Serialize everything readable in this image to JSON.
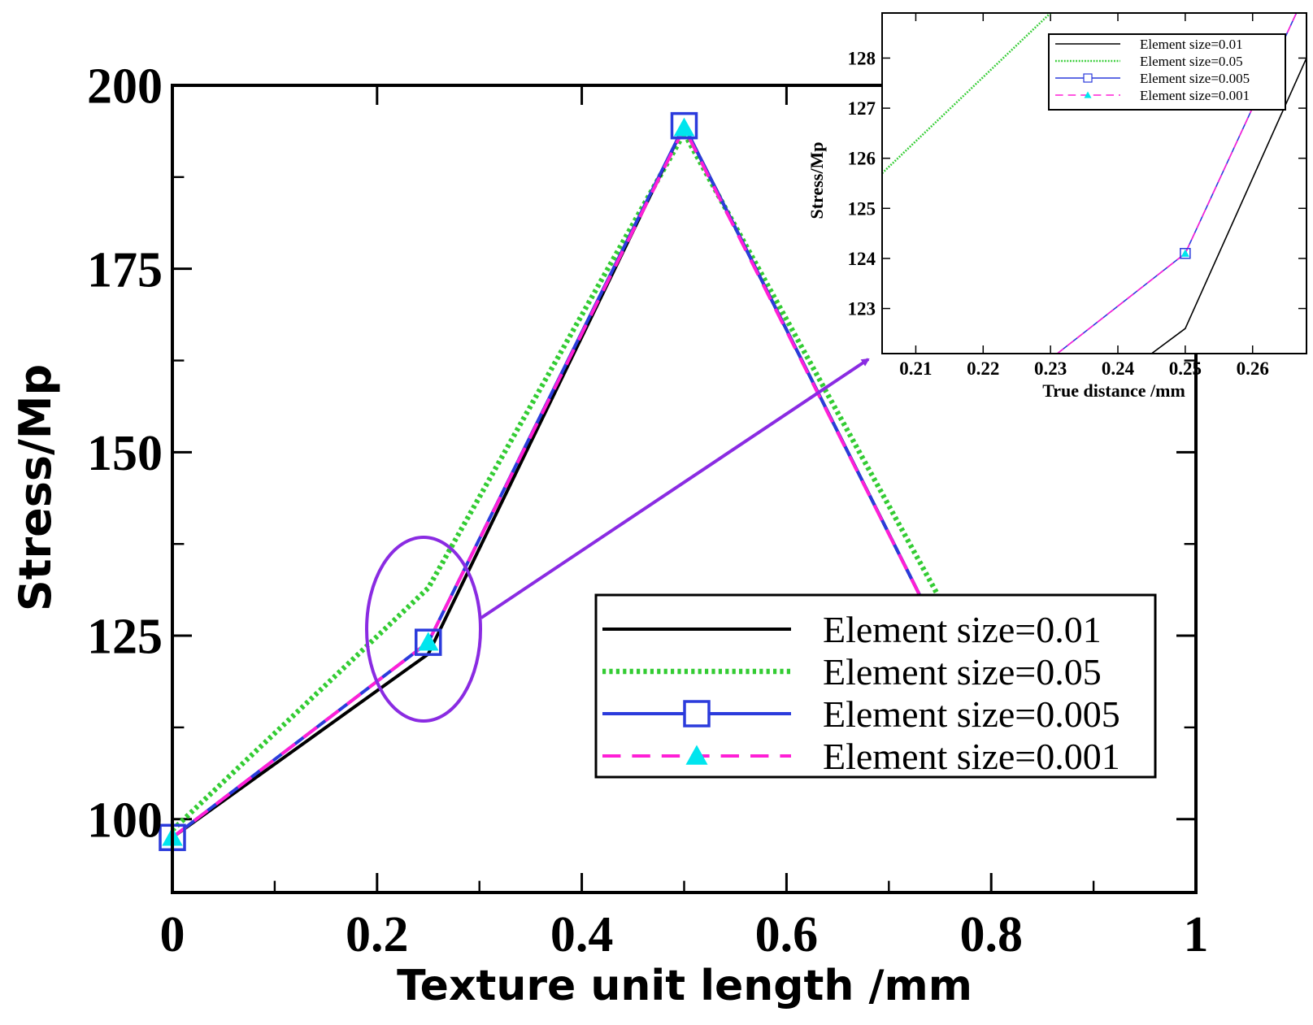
{
  "chart_data": [
    {
      "type": "line",
      "xlabel": "Texture unit length /mm",
      "ylabel": "Stress/Mp",
      "xlim": [
        0,
        1
      ],
      "ylim": [
        90,
        200
      ],
      "x_ticks": [
        "0",
        "0.2",
        "0.4",
        "0.6",
        "0.8",
        "1"
      ],
      "y_ticks": [
        "100",
        "125",
        "150",
        "175",
        "200"
      ],
      "legend_position": "bottom-right",
      "series": [
        {
          "name": "Element size=0.01",
          "color": "#000000",
          "style": "solid",
          "marker": "none",
          "x": [
            0,
            0.25,
            0.5,
            0.75
          ],
          "y": [
            97.5,
            122.5,
            194.5,
            125
          ]
        },
        {
          "name": "Element size=0.05",
          "color": "#33cc33",
          "style": "dotted",
          "marker": "none",
          "x": [
            0,
            0.25,
            0.5,
            0.75
          ],
          "y": [
            98.5,
            131.5,
            193.5,
            130
          ]
        },
        {
          "name": "Element size=0.005",
          "color": "#2b3bdc",
          "style": "solid",
          "marker": "square",
          "x": [
            0,
            0.25,
            0.5,
            0.75
          ],
          "y": [
            97.5,
            124.1,
            194.5,
            125
          ]
        },
        {
          "name": "Element size=0.001",
          "color": "#ff1fd6",
          "style": "dashed",
          "marker": "triangle",
          "marker_color": "#00e5ee",
          "x": [
            0,
            0.25,
            0.5,
            0.75
          ],
          "y": [
            97.5,
            124.1,
            194.2,
            125
          ]
        }
      ]
    },
    {
      "type": "line",
      "xlabel": "True distance /mm",
      "ylabel": "Stress/Mp",
      "xlim": [
        0.205,
        0.268
      ],
      "ylim": [
        122.1,
        128.9
      ],
      "x_ticks": [
        "0.21",
        "0.22",
        "0.23",
        "0.24",
        "0.25",
        "0.26"
      ],
      "y_ticks": [
        "123",
        "124",
        "125",
        "126",
        "127",
        "128"
      ],
      "legend_position": "top-right",
      "series": [
        {
          "name": "Element size=0.01",
          "color": "#000000",
          "style": "solid",
          "marker": "none",
          "x": [
            0.245,
            0.25,
            0.268
          ],
          "y": [
            122.1,
            122.6,
            128
          ]
        },
        {
          "name": "Element size=0.05",
          "color": "#33cc33",
          "style": "dotted",
          "marker": "none",
          "x": [
            0.205,
            0.23
          ],
          "y": [
            125.7,
            128.9
          ]
        },
        {
          "name": "Element size=0.005",
          "color": "#2b3bdc",
          "style": "solid",
          "marker": "square",
          "x": [
            0.231,
            0.25,
            0.2665
          ],
          "y": [
            122.1,
            124.1,
            128.9
          ]
        },
        {
          "name": "Element size=0.001",
          "color": "#ff1fd6",
          "style": "dashed",
          "marker": "triangle",
          "marker_color": "#00e5ee",
          "x": [
            0.231,
            0.25,
            0.2665
          ],
          "y": [
            122.1,
            124.1,
            128.9
          ]
        }
      ]
    }
  ]
}
